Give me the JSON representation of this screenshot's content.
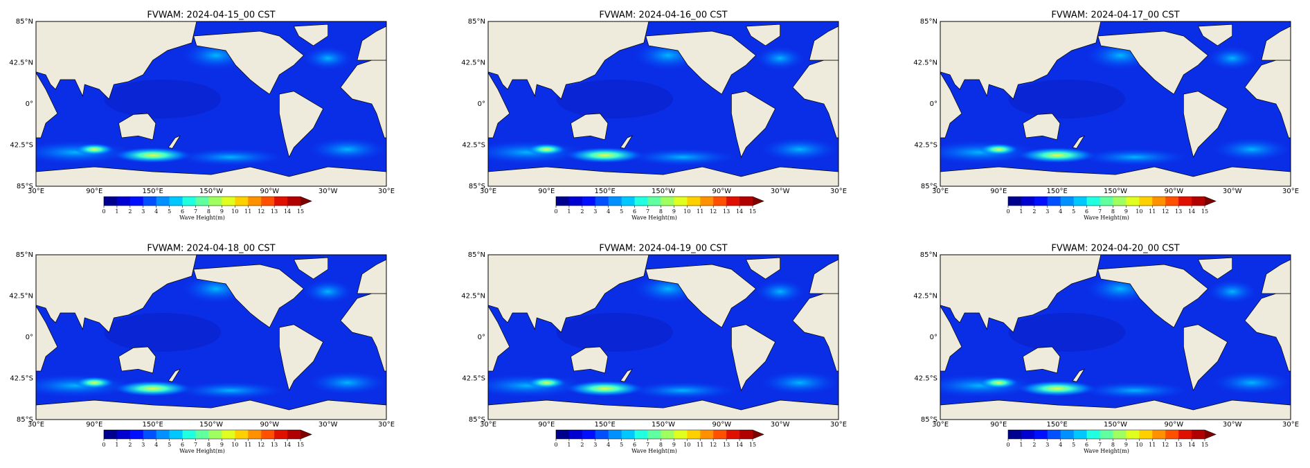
{
  "panels": [
    {
      "title": "FVWAM: 2024-04-15_00 CST"
    },
    {
      "title": "FVWAM: 2024-04-16_00 CST"
    },
    {
      "title": "FVWAM: 2024-04-17_00 CST"
    },
    {
      "title": "FVWAM: 2024-04-18_00 CST"
    },
    {
      "title": "FVWAM: 2024-04-19_00 CST"
    },
    {
      "title": "FVWAM: 2024-04-20_00 CST"
    }
  ],
  "lat_ticks": [
    "85°N",
    "42.5°N",
    "0°",
    "42.5°S",
    "85°S"
  ],
  "lon_ticks": [
    "30°E",
    "90°E",
    "150°E",
    "150°W",
    "90°W",
    "30°W",
    "30°E"
  ],
  "colorbar": {
    "label": "Wave Height(m)",
    "ticks": [
      0,
      1,
      2,
      3,
      4,
      5,
      6,
      7,
      8,
      9,
      10,
      11,
      12,
      13,
      14,
      15
    ],
    "colors": [
      "#00008f",
      "#0000d0",
      "#0010ff",
      "#0050ff",
      "#0090ff",
      "#00c8ff",
      "#20ffe0",
      "#60ffa0",
      "#a0ff60",
      "#e0ff20",
      "#ffd000",
      "#ff9000",
      "#ff5000",
      "#e01000",
      "#b00000"
    ],
    "extend_color": "#800000"
  }
}
